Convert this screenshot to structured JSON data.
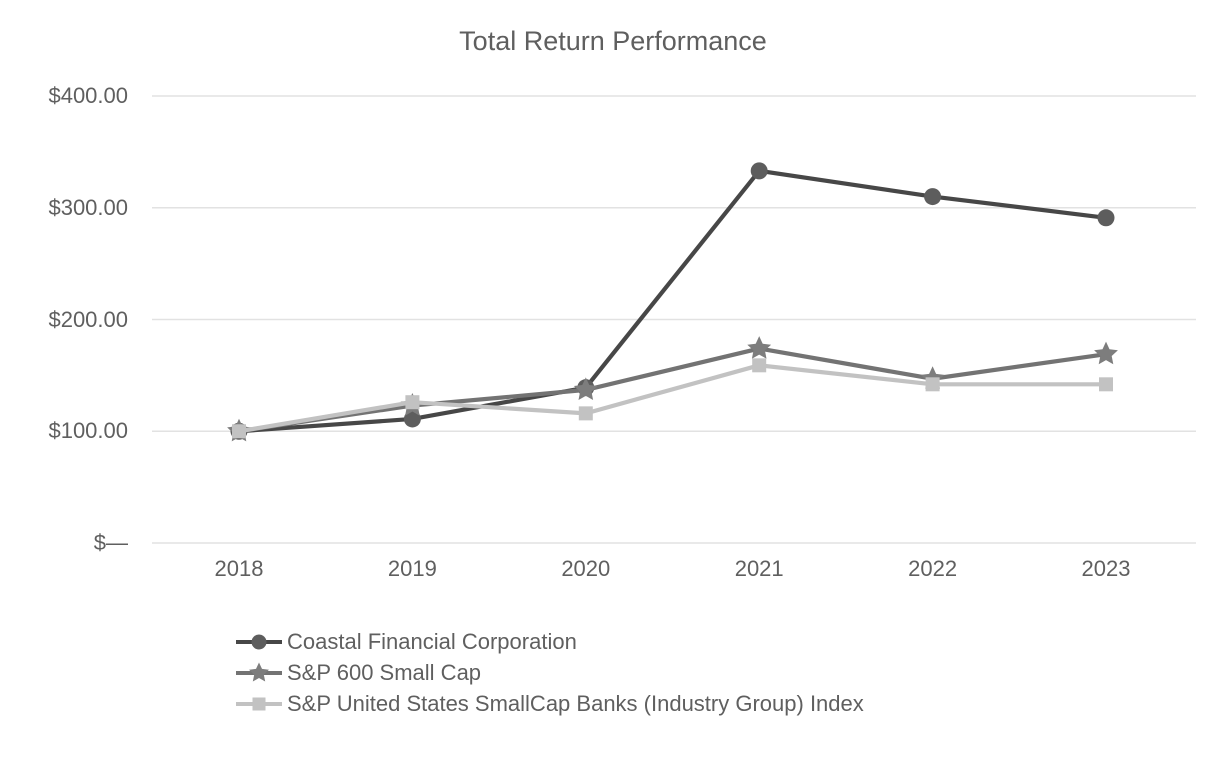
{
  "chart_data": {
    "type": "line",
    "title": "Total Return Performance",
    "x_labels": [
      "2018",
      "2019",
      "2020",
      "2021",
      "2022",
      "2023"
    ],
    "y_ticks": [
      {
        "value": 400,
        "label": "$400.00"
      },
      {
        "value": 300,
        "label": "$300.00"
      },
      {
        "value": 200,
        "label": "$200.00"
      },
      {
        "value": 100,
        "label": "$100.00"
      },
      {
        "value": 0,
        "label": "$—"
      }
    ],
    "ylim": [
      0,
      400
    ],
    "grid": true,
    "legend_position": "bottom-left",
    "series": [
      {
        "name": "Coastal Financial Corporation",
        "marker": "circle",
        "line_color": "#474747",
        "marker_color": "#5d5d5d",
        "values": [
          100.0,
          111.0,
          139.0,
          333.0,
          310.0,
          291.0
        ]
      },
      {
        "name": "S&P 600 Small Cap",
        "marker": "star",
        "line_color": "#737373",
        "marker_color": "#7d7d7d",
        "values": [
          100.0,
          123.0,
          137.0,
          174.0,
          147.0,
          169.0
        ]
      },
      {
        "name": "S&P United States SmallCap Banks (Industry Group) Index",
        "marker": "square",
        "line_color": "#c2c2c2",
        "marker_color": "#c2c2c2",
        "values": [
          100.0,
          126.0,
          116.0,
          159.0,
          142.0,
          142.0
        ]
      }
    ]
  },
  "colors": {
    "text": "#5f5f5f",
    "gridline": "#e2e2e2",
    "background": "#ffffff"
  }
}
